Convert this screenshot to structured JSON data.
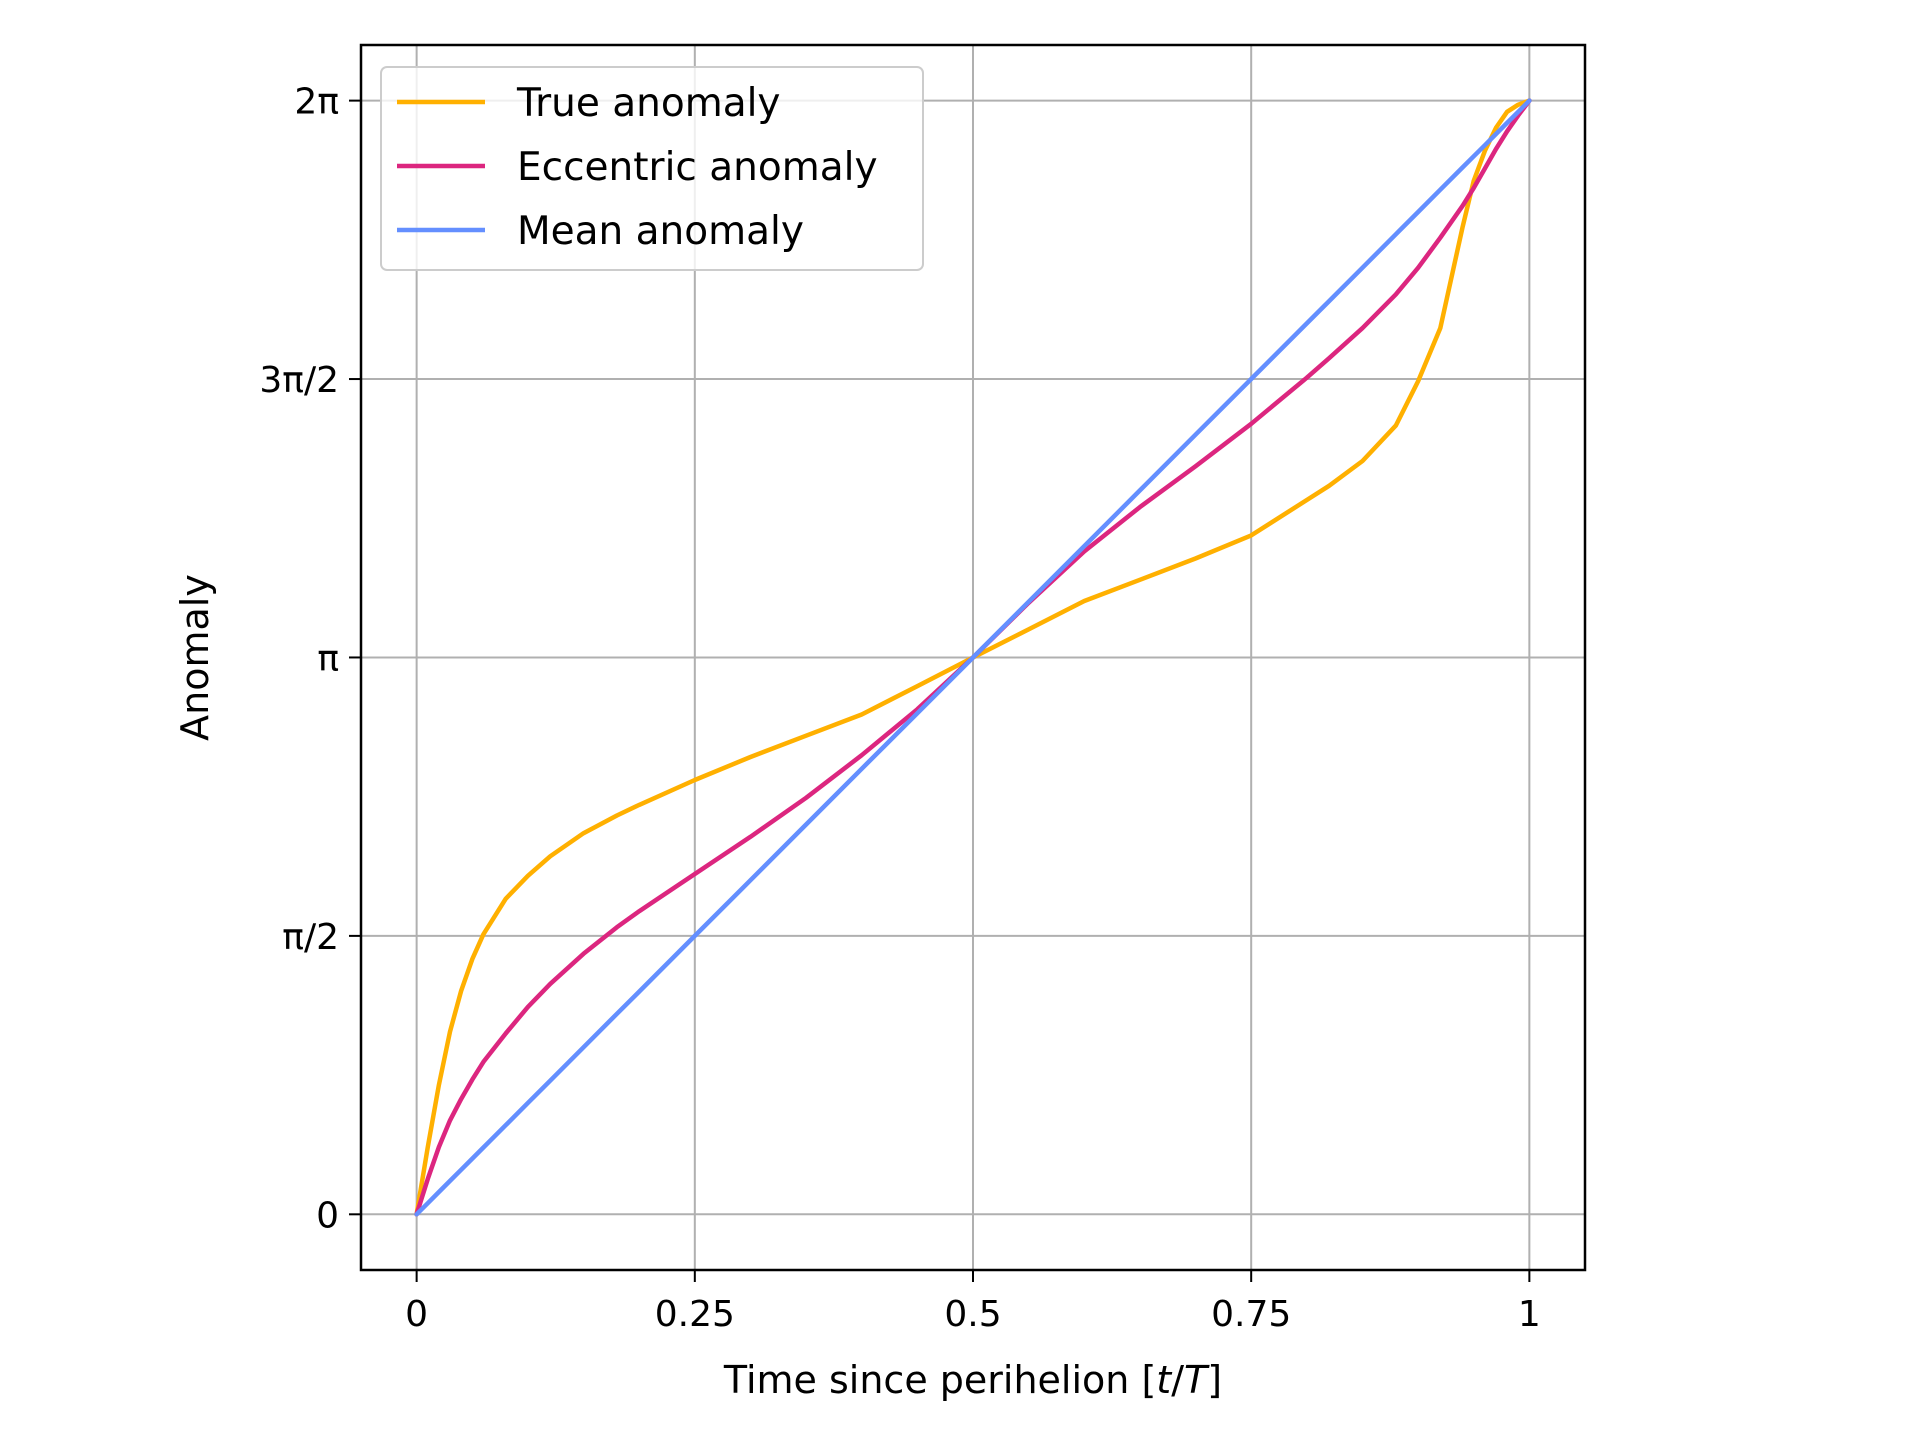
{
  "chart_data": {
    "type": "line",
    "title": "",
    "xlabel": "Time since perihelion [",
    "xlabel_t": "t",
    "xlabel_slash": "/",
    "xlabel_T": "T",
    "xlabel_close": "]",
    "ylabel": "Anomaly",
    "xlim": [
      -0.05,
      1.05
    ],
    "ylim": [
      -0.3142,
      6.597
    ],
    "grid": true,
    "legend_position": "top-left",
    "x_ticks": [
      {
        "value": 0,
        "label": "0"
      },
      {
        "value": 0.25,
        "label": "0.25"
      },
      {
        "value": 0.5,
        "label": "0.5"
      },
      {
        "value": 0.75,
        "label": "0.75"
      },
      {
        "value": 1,
        "label": "1"
      }
    ],
    "y_ticks": [
      {
        "value": 0,
        "label": "0"
      },
      {
        "value": 1.5708,
        "label": "π/2"
      },
      {
        "value": 3.1416,
        "label": "π"
      },
      {
        "value": 4.7124,
        "label": "3π/2"
      },
      {
        "value": 6.2832,
        "label": "2π"
      }
    ],
    "x": [
      0,
      0.01,
      0.02,
      0.03,
      0.04,
      0.05,
      0.06,
      0.08,
      0.1,
      0.12,
      0.15,
      0.18,
      0.2,
      0.25,
      0.3,
      0.35,
      0.4,
      0.45,
      0.5,
      0.55,
      0.6,
      0.65,
      0.7,
      0.75,
      0.8,
      0.82,
      0.85,
      0.88,
      0.9,
      0.92,
      0.94,
      0.95,
      0.96,
      0.97,
      0.98,
      0.99,
      1.0
    ],
    "series": [
      {
        "name": "True anomaly",
        "color": "#ffb000",
        "values": [
          0,
          0.38,
          0.73,
          1.03,
          1.26,
          1.44,
          1.58,
          1.78,
          1.91,
          2.02,
          2.15,
          2.25,
          2.31,
          2.45,
          2.58,
          2.7,
          2.82,
          2.98,
          3.1416,
          3.3,
          3.46,
          3.58,
          3.7,
          3.83,
          4.03,
          4.11,
          4.25,
          4.45,
          4.7,
          5.0,
          5.57,
          5.83,
          6.0,
          6.13,
          6.22,
          6.26,
          6.2832
        ]
      },
      {
        "name": "Eccentric anomaly",
        "color": "#dc267f",
        "values": [
          0,
          0.2,
          0.38,
          0.53,
          0.65,
          0.76,
          0.86,
          1.02,
          1.17,
          1.3,
          1.47,
          1.62,
          1.71,
          1.92,
          2.13,
          2.35,
          2.59,
          2.85,
          3.1416,
          3.45,
          3.74,
          3.99,
          4.22,
          4.46,
          4.72,
          4.83,
          5.0,
          5.19,
          5.34,
          5.51,
          5.69,
          5.79,
          5.9,
          6.01,
          6.11,
          6.2,
          6.2832
        ]
      },
      {
        "name": "Mean anomaly",
        "color": "#648fff",
        "values": [
          0,
          0.0628,
          0.1257,
          0.1885,
          0.2513,
          0.3142,
          0.377,
          0.5027,
          0.6283,
          0.754,
          0.9425,
          1.131,
          1.2566,
          1.5708,
          1.885,
          2.1991,
          2.5133,
          2.8274,
          3.1416,
          3.4558,
          3.7699,
          4.0841,
          4.3982,
          4.7124,
          5.0265,
          5.1522,
          5.3407,
          5.5292,
          5.6549,
          5.7805,
          5.9062,
          5.969,
          6.0319,
          6.0947,
          6.1575,
          6.2204,
          6.2832
        ]
      }
    ]
  }
}
